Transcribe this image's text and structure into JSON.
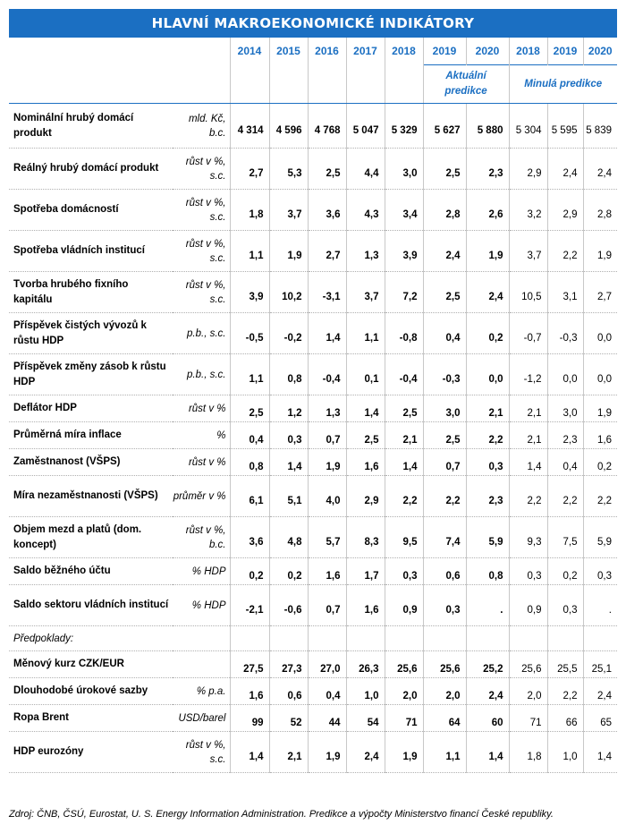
{
  "title": "HLAVNÍ MAKROEKONOMICKÉ INDIKÁTORY",
  "years": [
    "2014",
    "2015",
    "2016",
    "2017",
    "2018",
    "2019",
    "2020",
    "2018",
    "2019",
    "2020"
  ],
  "group_current": "Aktuální predikce",
  "group_past": "Minulá predikce",
  "rows": [
    {
      "label": "Nominální hrubý domácí produkt",
      "unit": "mld. Kč, b.c.",
      "values": [
        "4 314",
        "4 596",
        "4 768",
        "5 047",
        "5 329",
        "5 627",
        "5 880"
      ],
      "past": [
        "5 304",
        "5 595",
        "5 839"
      ]
    },
    {
      "label": "Reálný hrubý domácí produkt",
      "unit": "růst v %, s.c.",
      "values": [
        "2,7",
        "5,3",
        "2,5",
        "4,4",
        "3,0",
        "2,5",
        "2,3"
      ],
      "past": [
        "2,9",
        "2,4",
        "2,4"
      ]
    },
    {
      "label": "Spotřeba domácností",
      "unit": "růst v %, s.c.",
      "values": [
        "1,8",
        "3,7",
        "3,6",
        "4,3",
        "3,4",
        "2,8",
        "2,6"
      ],
      "past": [
        "3,2",
        "2,9",
        "2,8"
      ]
    },
    {
      "label": "Spotřeba vládních institucí",
      "unit": "růst v %, s.c.",
      "values": [
        "1,1",
        "1,9",
        "2,7",
        "1,3",
        "3,9",
        "2,4",
        "1,9"
      ],
      "past": [
        "3,7",
        "2,2",
        "1,9"
      ]
    },
    {
      "label": "Tvorba hrubého fixního kapitálu",
      "unit": "růst v %, s.c.",
      "values": [
        "3,9",
        "10,2",
        "-3,1",
        "3,7",
        "7,2",
        "2,5",
        "2,4"
      ],
      "past": [
        "10,5",
        "3,1",
        "2,7"
      ]
    },
    {
      "label": "Příspěvek čistých vývozů k růstu HDP",
      "unit": "p.b., s.c.",
      "values": [
        "-0,5",
        "-0,2",
        "1,4",
        "1,1",
        "-0,8",
        "0,4",
        "0,2"
      ],
      "past": [
        "-0,7",
        "-0,3",
        "0,0"
      ]
    },
    {
      "label": "Příspěvek změny zásob k růstu HDP",
      "unit": "p.b., s.c.",
      "values": [
        "1,1",
        "0,8",
        "-0,4",
        "0,1",
        "-0,4",
        "-0,3",
        "0,0"
      ],
      "past": [
        "-1,2",
        "0,0",
        "0,0"
      ]
    },
    {
      "label": "Deflátor HDP",
      "unit": "růst v %",
      "values": [
        "2,5",
        "1,2",
        "1,3",
        "1,4",
        "2,5",
        "3,0",
        "2,1"
      ],
      "past": [
        "2,1",
        "3,0",
        "1,9"
      ]
    },
    {
      "label": "Průměrná míra inflace",
      "unit": "%",
      "values": [
        "0,4",
        "0,3",
        "0,7",
        "2,5",
        "2,1",
        "2,5",
        "2,2"
      ],
      "past": [
        "2,1",
        "2,3",
        "1,6"
      ]
    },
    {
      "label": "Zaměstnanost (VŠPS)",
      "unit": "růst v %",
      "values": [
        "0,8",
        "1,4",
        "1,9",
        "1,6",
        "1,4",
        "0,7",
        "0,3"
      ],
      "past": [
        "1,4",
        "0,4",
        "0,2"
      ]
    },
    {
      "label": "Míra nezaměstnanosti (VŠPS)",
      "unit": "průměr v %",
      "values": [
        "6,1",
        "5,1",
        "4,0",
        "2,9",
        "2,2",
        "2,2",
        "2,3"
      ],
      "past": [
        "2,2",
        "2,2",
        "2,2"
      ]
    },
    {
      "label": "Objem mezd a platů (dom. koncept)",
      "unit": "růst v %, b.c.",
      "values": [
        "3,6",
        "4,8",
        "5,7",
        "8,3",
        "9,5",
        "7,4",
        "5,9"
      ],
      "past": [
        "9,3",
        "7,5",
        "5,9"
      ]
    },
    {
      "label": "Saldo běžného účtu",
      "unit": "% HDP",
      "values": [
        "0,2",
        "0,2",
        "1,6",
        "1,7",
        "0,3",
        "0,6",
        "0,8"
      ],
      "past": [
        "0,3",
        "0,2",
        "0,3"
      ]
    },
    {
      "label": "Saldo sektoru vládních institucí",
      "unit": "% HDP",
      "values": [
        "-2,1",
        "-0,6",
        "0,7",
        "1,6",
        "0,9",
        "0,3",
        "."
      ],
      "past": [
        "0,9",
        "0,3",
        "."
      ]
    }
  ],
  "assumptions_label": "Předpoklady:",
  "assumptions": [
    {
      "label": "Měnový kurz CZK/EUR",
      "unit": "",
      "values": [
        "27,5",
        "27,3",
        "27,0",
        "26,3",
        "25,6",
        "25,6",
        "25,2"
      ],
      "past": [
        "25,6",
        "25,5",
        "25,1"
      ]
    },
    {
      "label": "Dlouhodobé úrokové sazby",
      "unit": "% p.a.",
      "values": [
        "1,6",
        "0,6",
        "0,4",
        "1,0",
        "2,0",
        "2,0",
        "2,4"
      ],
      "past": [
        "2,0",
        "2,2",
        "2,4"
      ]
    },
    {
      "label": "Ropa Brent",
      "unit": "USD/barel",
      "values": [
        "99",
        "52",
        "44",
        "54",
        "71",
        "64",
        "60"
      ],
      "past": [
        "71",
        "66",
        "65"
      ]
    },
    {
      "label": "HDP eurozóny",
      "unit": "růst v %, s.c.",
      "values": [
        "1,4",
        "2,1",
        "1,9",
        "2,4",
        "1,9",
        "1,1",
        "1,4"
      ],
      "past": [
        "1,8",
        "1,0",
        "1,4"
      ]
    }
  ],
  "source": "Zdroj: ČNB, ČSÚ, Eurostat, U. S. Energy Information Administration. Predikce a výpočty Ministerstvo financí České republiky."
}
